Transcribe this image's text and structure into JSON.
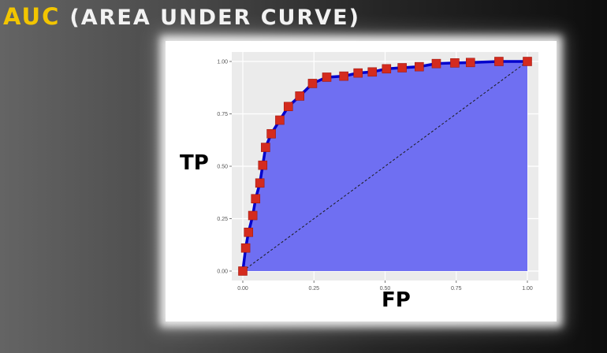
{
  "slide": {
    "title_accent": "AUC",
    "title_rest": "(AREA UNDER CURVE)"
  },
  "colors": {
    "accent": "#f2c500",
    "panel_bg": "#ebebeb",
    "fill": "#6f6ff2",
    "curve": "#0000cc",
    "marker": "#d42b1e"
  },
  "chart_data": {
    "type": "area",
    "xlabel": "FP",
    "ylabel": "TP",
    "xlim": [
      0,
      1
    ],
    "ylim": [
      0,
      1
    ],
    "grid": true,
    "x_ticks": [
      "0.00",
      "0.25",
      "0.50",
      "0.75",
      "1.00"
    ],
    "y_ticks": [
      "0.00",
      "0.25",
      "0.50",
      "0.75",
      "1.00"
    ],
    "x_tick_values": [
      0,
      0.25,
      0.5,
      0.75,
      1
    ],
    "y_tick_values": [
      0,
      0.25,
      0.5,
      0.75,
      1
    ],
    "series": [
      {
        "type": "area",
        "x": [
          0,
          0.01,
          0.02,
          0.035,
          0.045,
          0.06,
          0.07,
          0.08,
          0.1,
          0.13,
          0.16,
          0.2,
          0.245,
          0.295,
          0.355,
          0.405,
          0.455,
          0.505,
          0.56,
          0.62,
          0.68,
          0.745,
          0.8,
          0.9,
          1.0
        ],
        "y": [
          0,
          0.11,
          0.185,
          0.265,
          0.345,
          0.42,
          0.505,
          0.59,
          0.655,
          0.72,
          0.785,
          0.835,
          0.895,
          0.925,
          0.93,
          0.945,
          0.95,
          0.965,
          0.97,
          0.975,
          0.99,
          0.993,
          0.995,
          1.0,
          1.0
        ],
        "markers": true
      },
      {
        "type": "line",
        "style": "dashed",
        "x": [
          0,
          1
        ],
        "y": [
          0,
          1
        ]
      }
    ]
  }
}
